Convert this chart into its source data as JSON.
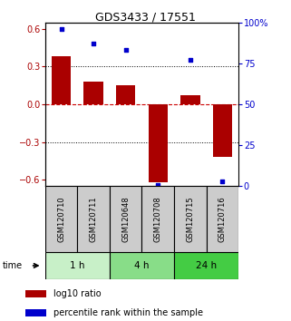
{
  "title": "GDS3433 / 17551",
  "samples": [
    "GSM120710",
    "GSM120711",
    "GSM120648",
    "GSM120708",
    "GSM120715",
    "GSM120716"
  ],
  "log10_ratio": [
    0.38,
    0.18,
    0.15,
    -0.62,
    0.07,
    -0.42
  ],
  "percentile_rank": [
    96,
    87,
    83,
    1,
    77,
    3
  ],
  "groups": [
    {
      "label": "1 h",
      "indices": [
        0,
        1
      ],
      "color": "#c8f0c8"
    },
    {
      "label": "4 h",
      "indices": [
        2,
        3
      ],
      "color": "#88dd88"
    },
    {
      "label": "24 h",
      "indices": [
        4,
        5
      ],
      "color": "#44cc44"
    }
  ],
  "bar_color": "#aa0000",
  "dot_color": "#0000cc",
  "ylim_left": [
    -0.65,
    0.65
  ],
  "ylim_right": [
    0,
    100
  ],
  "yticks_left": [
    -0.6,
    -0.3,
    0.0,
    0.3,
    0.6
  ],
  "yticks_right": [
    0,
    25,
    50,
    75,
    100
  ],
  "hline_color": "#cc0000",
  "grid_color": "#000000",
  "legend_red": "log10 ratio",
  "legend_blue": "percentile rank within the sample",
  "time_label": "time",
  "background_color": "#ffffff",
  "label_bg": "#cccccc"
}
